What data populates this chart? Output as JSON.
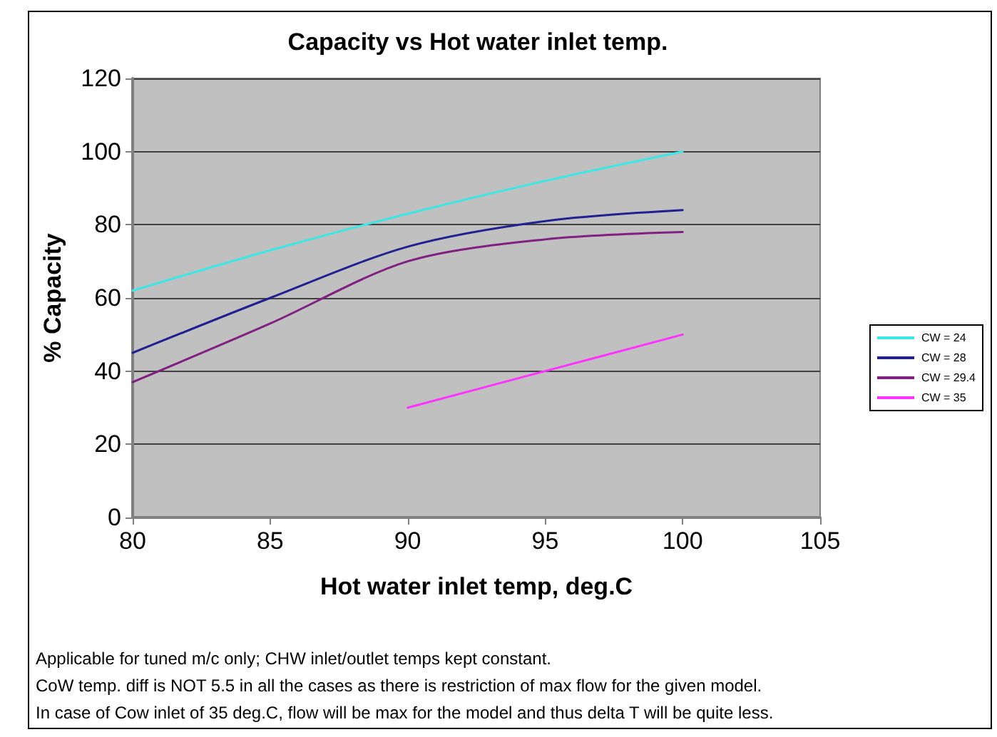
{
  "chart_data": {
    "type": "line",
    "title": "Capacity vs Hot water inlet temp.",
    "xlabel": "Hot water inlet temp, deg.C",
    "ylabel": "% Capacity",
    "x": [
      80,
      85,
      90,
      95,
      100
    ],
    "series": [
      {
        "name": "CW = 24",
        "color": "#3ee6e6",
        "values": [
          62,
          73,
          83,
          92,
          100
        ]
      },
      {
        "name": "CW = 28",
        "color": "#202090",
        "values": [
          45,
          60,
          74,
          81,
          84
        ]
      },
      {
        "name": "CW = 29.4",
        "color": "#802080",
        "values": [
          37,
          53,
          70,
          76,
          78
        ]
      },
      {
        "name": "CW = 35",
        "color": "#ff33ff",
        "values": [
          null,
          null,
          30,
          40,
          50
        ]
      }
    ],
    "xlim": [
      80,
      105
    ],
    "xticks": [
      80,
      85,
      90,
      95,
      100,
      105
    ],
    "ylim": [
      0,
      120
    ],
    "yticks": [
      0,
      20,
      40,
      60,
      80,
      100,
      120
    ],
    "grid": "y",
    "legend": "right",
    "marker": "none",
    "line_style": "solid",
    "annotations": [
      "Applicable for tuned m/c only; CHW inlet/outlet temps kept constant.",
      "CoW temp. diff is NOT 5.5 in all the cases as there is restriction of max flow for the given model.",
      "In case of Cow inlet of 35 deg.C, flow will be max for the model and thus delta T will be quite less."
    ]
  }
}
